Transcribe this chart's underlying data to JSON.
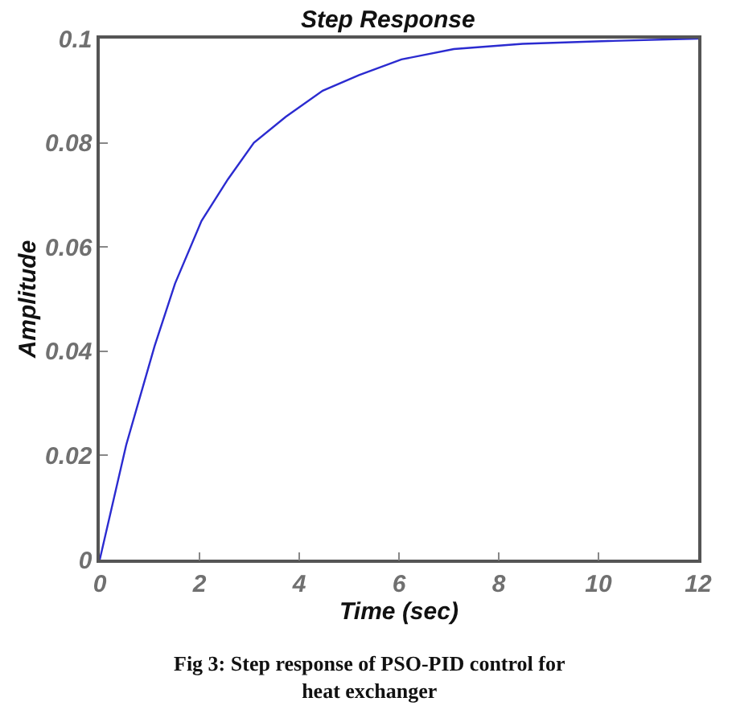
{
  "chart_data": {
    "type": "line",
    "title": "Step Response",
    "xlabel": "Time (sec)",
    "ylabel": "Amplitude",
    "x": [
      0,
      0.53,
      1.1,
      1.51,
      2.04,
      2.57,
      3.09,
      3.73,
      4.47,
      5.2,
      6.05,
      7.1,
      8.48,
      10.06,
      12
    ],
    "series": [
      {
        "color": "#2b2bd0",
        "values": [
          0,
          0.022,
          0.041,
          0.053,
          0.065,
          0.073,
          0.08,
          0.085,
          0.09,
          0.093,
          0.096,
          0.098,
          0.099,
          0.0995,
          0.1
        ]
      }
    ],
    "xlim": [
      0,
      12
    ],
    "xticks": [
      0,
      2,
      4,
      6,
      8,
      10,
      12
    ],
    "ylim": [
      0,
      0.1
    ],
    "yticks": [
      0,
      0.02,
      0.04,
      0.06,
      0.08,
      0.1
    ],
    "grid": false,
    "marker": "none",
    "line_style": "solid",
    "annotations": [
      "Fig 3: Step response of PSO-PID control for heat exchanger"
    ]
  }
}
